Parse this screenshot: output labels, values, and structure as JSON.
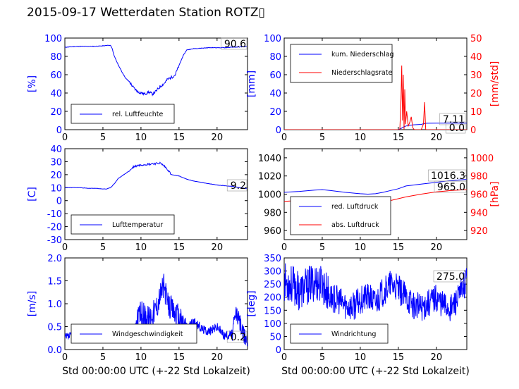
{
  "title": "2015-09-17 Wetterdaten Station ROTZ▯",
  "colors": {
    "blue": "#0000ff",
    "red": "#ff0000"
  },
  "chart_data": [
    {
      "id": "humidity",
      "type": "line",
      "ylabel": "[%]",
      "xlabel": "",
      "xlim": [
        0,
        24
      ],
      "ylim": [
        0,
        100
      ],
      "xticks": [
        0,
        5,
        10,
        15,
        20
      ],
      "yticks": [
        0,
        20,
        40,
        60,
        80,
        100
      ],
      "legend": [
        "rel. Luftfeuchte"
      ],
      "legend_position": "lower-center",
      "annotations": [
        {
          "text": "90.6"
        }
      ],
      "series": [
        {
          "name": "rel. Luftfeuchte",
          "x": [
            0,
            1,
            2,
            3,
            4,
            5,
            5.6,
            6.0,
            6.2,
            6.5,
            7,
            7.5,
            8,
            8.5,
            9,
            9.5,
            10,
            10.5,
            11,
            11.5,
            12,
            12.5,
            13,
            13.5,
            14,
            14.5,
            15,
            15.5,
            16,
            17,
            18,
            19,
            20,
            21,
            22,
            23,
            23.9
          ],
          "y": [
            90,
            90.5,
            91,
            91,
            91,
            91.5,
            92,
            92,
            89,
            80,
            71,
            63,
            56,
            52,
            46,
            42,
            40,
            39,
            41,
            39,
            42,
            47,
            50,
            55,
            57,
            60,
            70,
            80,
            87,
            88.5,
            89,
            89.5,
            89.5,
            89.5,
            90,
            90.3,
            90.6
          ]
        }
      ]
    },
    {
      "id": "precip",
      "type": "line",
      "ylabel": "[mm]",
      "ylabel_right": "[mm/std]",
      "xlim": [
        0,
        24
      ],
      "ylim": [
        0,
        100
      ],
      "ylim_right": [
        0,
        50
      ],
      "xticks": [
        0,
        5,
        10,
        15,
        20
      ],
      "yticks": [
        0,
        20,
        40,
        60,
        80,
        100
      ],
      "yticks_right": [
        0,
        10,
        20,
        30,
        40,
        50
      ],
      "legend": [
        "kum. Niederschlag",
        "Niederschlagsrate"
      ],
      "legend_position": "upper-left",
      "annotations": [
        {
          "text": "7.11"
        },
        {
          "text": "0.0"
        }
      ],
      "series": [
        {
          "name": "kum. Niederschlag",
          "axis": "left",
          "x": [
            0,
            15.0,
            15.4,
            15.7,
            16.0,
            16.5,
            17.0,
            18.0,
            18.4,
            18.7,
            20,
            24
          ],
          "y": [
            0,
            0,
            1.5,
            3.0,
            4.0,
            4.8,
            5.3,
            5.8,
            6.6,
            7.0,
            7.1,
            7.11
          ]
        },
        {
          "name": "Niederschlagsrate",
          "axis": "right",
          "x": [
            0,
            15.2,
            15.35,
            15.45,
            15.55,
            15.65,
            15.75,
            15.85,
            15.95,
            16.1,
            16.3,
            16.5,
            16.7,
            16.9,
            17.1,
            18.0,
            18.3,
            18.45,
            18.6,
            18.8,
            24
          ],
          "y": [
            0,
            0,
            17,
            35,
            5,
            30,
            0,
            22,
            3,
            10,
            2,
            4,
            7,
            1,
            0,
            0,
            3,
            15,
            0,
            0,
            0
          ]
        }
      ]
    },
    {
      "id": "temperature",
      "type": "line",
      "ylabel": "[C]",
      "xlim": [
        0,
        24
      ],
      "ylim": [
        -30,
        40
      ],
      "xticks": [
        0,
        5,
        10,
        15,
        20
      ],
      "yticks": [
        -30,
        -20,
        -10,
        0,
        10,
        20,
        30,
        40
      ],
      "legend": [
        "Lufttemperatur"
      ],
      "legend_position": "lower-center",
      "annotations": [
        {
          "text": "9.2"
        }
      ],
      "series": [
        {
          "name": "Lufttemperatur",
          "x": [
            0,
            1,
            2,
            3,
            4,
            5,
            5.5,
            6,
            6.5,
            7,
            7.5,
            8,
            8.5,
            9,
            9.5,
            10,
            10.5,
            11,
            11.5,
            12,
            12.5,
            13,
            13.5,
            14,
            15,
            16,
            17,
            18,
            19,
            20,
            21,
            22,
            23,
            23.9
          ],
          "y": [
            10,
            10,
            10,
            9.5,
            9.5,
            9,
            9,
            10,
            13,
            17,
            19,
            21,
            23,
            26,
            27,
            27.5,
            28,
            28,
            28.5,
            28.5,
            29,
            27,
            24,
            20,
            19,
            16.5,
            15,
            14,
            13,
            12,
            11.5,
            11,
            10,
            9.2
          ]
        }
      ]
    },
    {
      "id": "pressure",
      "type": "line",
      "ylabel": "",
      "ylabel_right": "[hPa]",
      "xlim": [
        0,
        24
      ],
      "ylim": [
        950,
        1050
      ],
      "ylim_right": [
        910,
        1010
      ],
      "xticks": [
        0,
        5,
        10,
        15,
        20
      ],
      "yticks": [
        960,
        980,
        1000,
        1020,
        1040
      ],
      "yticks_right": [
        920,
        940,
        960,
        980,
        1000
      ],
      "legend": [
        "red. Luftdruck",
        "abs. Luftdruck"
      ],
      "legend_position": "lower-left",
      "annotations": [
        {
          "text": "1016.3"
        },
        {
          "text": "965.0"
        }
      ],
      "series": [
        {
          "name": "red. Luftdruck",
          "axis": "left",
          "x": [
            0,
            2,
            4,
            5,
            6,
            8,
            10,
            11,
            12,
            13,
            14,
            15,
            16,
            18,
            20,
            22,
            24
          ],
          "y": [
            1002,
            1003,
            1004.5,
            1005,
            1004,
            1002,
            1000.5,
            1000,
            1000.5,
            1002,
            1004,
            1006,
            1009,
            1011,
            1013,
            1015,
            1016.3
          ]
        },
        {
          "name": "abs. Luftdruck",
          "axis": "right",
          "x": [
            0,
            2,
            4,
            6,
            8,
            10,
            12,
            14,
            16,
            18,
            20,
            22,
            24
          ],
          "y": [
            952,
            953,
            953,
            952.5,
            951.5,
            951,
            951.5,
            953,
            957,
            960,
            962.5,
            964,
            965
          ]
        }
      ]
    },
    {
      "id": "wind-speed",
      "type": "line",
      "ylabel": "[m/s]",
      "xlabel": "Std 00:00:00 UTC (+-22 Std Lokalzeit)",
      "xlim": [
        0,
        24
      ],
      "ylim": [
        0,
        2.0
      ],
      "xticks": [
        0,
        5,
        10,
        15,
        20
      ],
      "yticks": [
        0.0,
        0.5,
        1.0,
        1.5,
        2.0
      ],
      "legend": [
        "Windgeschwindigkeit"
      ],
      "legend_position": "lower-center",
      "annotations": [
        {
          "text": "0.2"
        }
      ],
      "series": [
        {
          "name": "Windgeschwindigkeit",
          "x": [
            0,
            1,
            2,
            3,
            4,
            5,
            6,
            7,
            8,
            9,
            9.5,
            10,
            11,
            12,
            12.5,
            13,
            13.5,
            14,
            15,
            16,
            17,
            18,
            19,
            20,
            21,
            22,
            22.5,
            23,
            23.5,
            24
          ],
          "y": [
            0.25,
            0.3,
            0.3,
            0.35,
            0.3,
            0.35,
            0.3,
            0.35,
            0.4,
            0.45,
            0.6,
            0.8,
            0.7,
            0.9,
            1.2,
            1.4,
            1.0,
            0.9,
            0.7,
            0.5,
            0.6,
            0.45,
            0.4,
            0.5,
            0.3,
            0.35,
            0.8,
            0.6,
            0.3,
            0.2
          ]
        }
      ]
    },
    {
      "id": "wind-direction",
      "type": "line",
      "ylabel": "[deg]",
      "xlabel": "Std 00:00:00 UTC (+-22 Std Lokalzeit)",
      "xlim": [
        0,
        24
      ],
      "ylim": [
        0,
        350
      ],
      "xticks": [
        0,
        5,
        10,
        15,
        20
      ],
      "yticks": [
        0,
        50,
        100,
        150,
        200,
        250,
        300,
        350
      ],
      "legend": [
        "Windrichtung"
      ],
      "legend_position": "lower-left",
      "annotations": [
        {
          "text": "275.0"
        }
      ],
      "series": [
        {
          "name": "Windrichtung",
          "x": [
            0,
            1,
            2,
            3,
            4,
            5,
            6,
            7,
            8,
            9,
            10,
            11,
            12,
            13,
            14,
            15,
            16,
            17,
            18,
            19,
            20,
            21,
            22,
            23,
            24
          ],
          "y": [
            260,
            250,
            220,
            240,
            260,
            250,
            200,
            190,
            170,
            160,
            190,
            200,
            180,
            220,
            250,
            230,
            200,
            170,
            160,
            180,
            200,
            170,
            160,
            200,
            275
          ]
        }
      ]
    }
  ]
}
